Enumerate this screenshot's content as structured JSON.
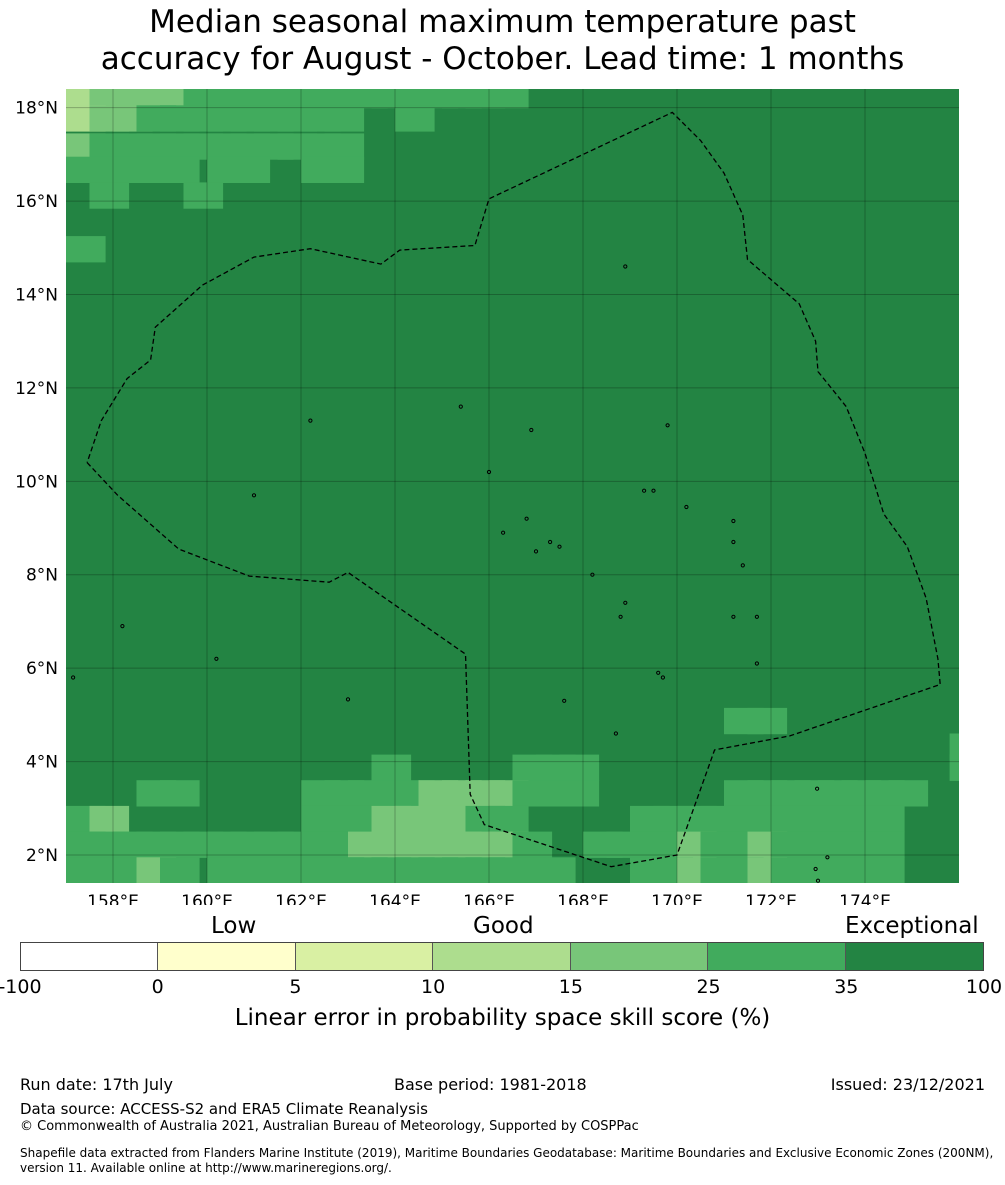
{
  "title": {
    "line1": "Median seasonal maximum temperature past",
    "line2": "accuracy for August - October. Lead time: 1 months"
  },
  "map": {
    "lon_range": [
      157,
      176
    ],
    "lat_range": [
      1.4,
      18.4
    ],
    "lon_ticks": [
      158,
      160,
      162,
      164,
      166,
      168,
      170,
      172,
      174
    ],
    "lon_tick_labels": [
      "158°E",
      "160°E",
      "162°E",
      "164°E",
      "166°E",
      "168°E",
      "170°E",
      "172°E",
      "174°E"
    ],
    "lat_ticks": [
      18,
      16,
      14,
      12,
      10,
      8,
      6,
      4,
      2
    ],
    "lat_tick_labels": [
      "18°N",
      "16°N",
      "14°N",
      "12°N",
      "10°N",
      "8°N",
      "6°N",
      "4°N",
      "2°N"
    ],
    "gridlines": true,
    "background_color": "#238443",
    "eez_boundary_style": "dashed black",
    "eez_boundary": [
      [
        157.45,
        10.4
      ],
      [
        158.1,
        9.7
      ],
      [
        159.4,
        8.55
      ],
      [
        160.9,
        7.97
      ],
      [
        162.6,
        7.84
      ],
      [
        163.0,
        8.05
      ],
      [
        165.5,
        6.3
      ],
      [
        165.6,
        3.3
      ],
      [
        165.9,
        2.65
      ],
      [
        168.6,
        1.75
      ],
      [
        170.0,
        2.0
      ],
      [
        170.8,
        4.25
      ],
      [
        172.4,
        4.55
      ],
      [
        175.6,
        5.65
      ],
      [
        175.55,
        6.2
      ],
      [
        175.3,
        7.5
      ],
      [
        174.9,
        8.6
      ],
      [
        174.4,
        9.3
      ],
      [
        174.0,
        10.6
      ],
      [
        173.6,
        11.6
      ],
      [
        173.2,
        12.1
      ],
      [
        173.0,
        12.35
      ],
      [
        172.95,
        13.0
      ],
      [
        172.6,
        13.8
      ],
      [
        171.5,
        14.75
      ],
      [
        171.4,
        15.7
      ],
      [
        171.0,
        16.6
      ],
      [
        170.5,
        17.3
      ],
      [
        169.9,
        17.9
      ],
      [
        166.0,
        16.05
      ],
      [
        165.7,
        15.05
      ],
      [
        164.1,
        14.95
      ],
      [
        163.7,
        14.65
      ],
      [
        162.2,
        14.98
      ],
      [
        161.0,
        14.8
      ],
      [
        159.9,
        14.2
      ],
      [
        158.9,
        13.3
      ],
      [
        158.8,
        12.6
      ],
      [
        158.3,
        12.2
      ],
      [
        157.75,
        11.3
      ],
      [
        157.45,
        10.4
      ]
    ],
    "islands": [
      [
        158.2,
        6.9
      ],
      [
        157.15,
        5.8
      ],
      [
        163.0,
        5.33
      ],
      [
        160.2,
        6.2
      ],
      [
        162.2,
        11.3
      ],
      [
        165.4,
        11.6
      ],
      [
        166.9,
        11.1
      ],
      [
        169.8,
        11.2
      ],
      [
        168.9,
        14.6
      ],
      [
        166.0,
        10.2
      ],
      [
        169.3,
        9.8
      ],
      [
        169.5,
        9.8
      ],
      [
        170.2,
        9.45
      ],
      [
        171.2,
        9.15
      ],
      [
        171.2,
        8.7
      ],
      [
        171.4,
        8.2
      ],
      [
        171.2,
        7.1
      ],
      [
        171.7,
        7.1
      ],
      [
        171.7,
        6.1
      ],
      [
        169.6,
        5.9
      ],
      [
        169.7,
        5.8
      ],
      [
        167.3,
        8.7
      ],
      [
        168.2,
        8.0
      ],
      [
        168.9,
        7.4
      ],
      [
        168.8,
        7.1
      ],
      [
        167.6,
        5.3
      ],
      [
        168.7,
        4.6
      ],
      [
        166.3,
        8.9
      ],
      [
        166.8,
        9.2
      ],
      [
        167.5,
        8.6
      ],
      [
        172.98,
        3.42
      ],
      [
        173.2,
        1.95
      ],
      [
        172.95,
        1.7
      ],
      [
        173.0,
        1.45
      ],
      [
        161.0,
        9.7
      ],
      [
        167.0,
        8.5
      ]
    ],
    "cells": [
      [
        157,
        18,
        "#addd8e"
      ],
      [
        157.5,
        18,
        "#78c679"
      ],
      [
        158,
        18,
        "#78c679"
      ],
      [
        158.5,
        18,
        "#78c679"
      ],
      [
        159,
        18,
        "#78c679"
      ],
      [
        159.5,
        18,
        "#41ab5d"
      ],
      [
        160,
        18,
        "#41ab5d"
      ],
      [
        160.5,
        18,
        "#41ab5d"
      ],
      [
        161,
        18,
        "#41ab5d"
      ],
      [
        161.5,
        18,
        "#41ab5d"
      ],
      [
        162,
        18,
        "#41ab5d"
      ],
      [
        162.5,
        18,
        "#41ab5d"
      ],
      [
        163,
        18,
        "#41ab5d"
      ],
      [
        163.5,
        18,
        "#41ab5d"
      ],
      [
        164,
        18,
        "#41ab5d"
      ],
      [
        164.5,
        18,
        "#41ab5d"
      ],
      [
        165,
        18,
        "#41ab5d"
      ],
      [
        165.5,
        18,
        "#41ab5d"
      ],
      [
        166,
        18,
        "#41ab5d"
      ],
      [
        157,
        17.5,
        "#addd8e"
      ],
      [
        157.5,
        17.5,
        "#78c679"
      ],
      [
        158,
        17.5,
        "#78c679"
      ],
      [
        158.5,
        17.5,
        "#41ab5d"
      ],
      [
        159,
        17.5,
        "#41ab5d"
      ],
      [
        159.5,
        17.5,
        "#41ab5d"
      ],
      [
        160,
        17.5,
        "#41ab5d"
      ],
      [
        160.5,
        17.5,
        "#41ab5d"
      ],
      [
        161,
        17.5,
        "#41ab5d"
      ],
      [
        161.5,
        17.5,
        "#41ab5d"
      ],
      [
        162,
        17.5,
        "#41ab5d"
      ],
      [
        162.5,
        17.5,
        "#41ab5d"
      ],
      [
        164,
        17.5,
        "#41ab5d"
      ],
      [
        157,
        16.9,
        "#78c679"
      ],
      [
        157.5,
        16.9,
        "#41ab5d"
      ],
      [
        158,
        16.9,
        "#41ab5d"
      ],
      [
        158.5,
        16.9,
        "#41ab5d"
      ],
      [
        159,
        16.9,
        "#41ab5d"
      ],
      [
        159.5,
        16.9,
        "#41ab5d"
      ],
      [
        160,
        16.9,
        "#41ab5d"
      ],
      [
        160.5,
        16.9,
        "#41ab5d"
      ],
      [
        161,
        16.9,
        "#41ab5d"
      ],
      [
        161.5,
        16.9,
        "#41ab5d"
      ],
      [
        162,
        16.9,
        "#41ab5d"
      ],
      [
        162.5,
        16.9,
        "#41ab5d"
      ],
      [
        157,
        16.4,
        "#41ab5d"
      ],
      [
        157.5,
        16.4,
        "#41ab5d"
      ],
      [
        158,
        16.4,
        "#41ab5d"
      ],
      [
        158.5,
        16.4,
        "#41ab5d"
      ],
      [
        159,
        16.4,
        "#41ab5d"
      ],
      [
        160,
        16.4,
        "#41ab5d"
      ],
      [
        160.5,
        16.4,
        "#41ab5d"
      ],
      [
        162,
        16.4,
        "#41ab5d"
      ],
      [
        162.5,
        16.4,
        "#41ab5d"
      ],
      [
        157.5,
        15.85,
        "#41ab5d"
      ],
      [
        159.5,
        15.85,
        "#41ab5d"
      ],
      [
        157,
        14.7,
        "#41ab5d"
      ],
      [
        163.5,
        3.6,
        "#41ab5d"
      ],
      [
        166.5,
        3.6,
        "#41ab5d"
      ],
      [
        167,
        3.6,
        "#41ab5d"
      ],
      [
        167.5,
        3.6,
        "#41ab5d"
      ],
      [
        175.8,
        3.6,
        "#41ab5d"
      ],
      [
        175.8,
        4.05,
        "#41ab5d"
      ],
      [
        171,
        4.6,
        "#41ab5d"
      ],
      [
        171.5,
        4.6,
        "#41ab5d"
      ],
      [
        158.5,
        3.05,
        "#41ab5d"
      ],
      [
        159,
        3.05,
        "#41ab5d"
      ],
      [
        162,
        3.05,
        "#41ab5d"
      ],
      [
        162.5,
        3.05,
        "#41ab5d"
      ],
      [
        163,
        3.05,
        "#41ab5d"
      ],
      [
        163.5,
        3.05,
        "#41ab5d"
      ],
      [
        164,
        3.05,
        "#41ab5d"
      ],
      [
        164.5,
        3.05,
        "#78c679"
      ],
      [
        165,
        3.05,
        "#78c679"
      ],
      [
        165.5,
        3.05,
        "#78c679"
      ],
      [
        166,
        3.05,
        "#78c679"
      ],
      [
        166.5,
        3.05,
        "#41ab5d"
      ],
      [
        167,
        3.05,
        "#41ab5d"
      ],
      [
        167.5,
        3.05,
        "#41ab5d"
      ],
      [
        171,
        3.05,
        "#41ab5d"
      ],
      [
        171.5,
        3.05,
        "#41ab5d"
      ],
      [
        172,
        3.05,
        "#41ab5d"
      ],
      [
        172.5,
        3.05,
        "#41ab5d"
      ],
      [
        173,
        3.05,
        "#41ab5d"
      ],
      [
        173.5,
        3.05,
        "#41ab5d"
      ],
      [
        174,
        3.05,
        "#41ab5d"
      ],
      [
        174.5,
        3.05,
        "#41ab5d"
      ],
      [
        157,
        2.5,
        "#41ab5d"
      ],
      [
        157.5,
        2.5,
        "#78c679"
      ],
      [
        162,
        2.5,
        "#41ab5d"
      ],
      [
        162.5,
        2.5,
        "#41ab5d"
      ],
      [
        163,
        2.5,
        "#41ab5d"
      ],
      [
        163.5,
        2.5,
        "#78c679"
      ],
      [
        164,
        2.5,
        "#78c679"
      ],
      [
        164.5,
        2.5,
        "#78c679"
      ],
      [
        165,
        2.5,
        "#78c679"
      ],
      [
        165.5,
        2.5,
        "#41ab5d"
      ],
      [
        166,
        2.5,
        "#41ab5d"
      ],
      [
        169,
        2.5,
        "#41ab5d"
      ],
      [
        169.5,
        2.5,
        "#41ab5d"
      ],
      [
        170,
        2.5,
        "#41ab5d"
      ],
      [
        170.5,
        2.5,
        "#41ab5d"
      ],
      [
        171,
        2.5,
        "#41ab5d"
      ],
      [
        171.5,
        2.5,
        "#41ab5d"
      ],
      [
        172,
        2.5,
        "#41ab5d"
      ],
      [
        172.5,
        2.5,
        "#41ab5d"
      ],
      [
        173,
        2.5,
        "#41ab5d"
      ],
      [
        173.5,
        2.5,
        "#41ab5d"
      ],
      [
        174,
        2.5,
        "#41ab5d"
      ],
      [
        157,
        1.95,
        "#41ab5d"
      ],
      [
        157.5,
        1.95,
        "#41ab5d"
      ],
      [
        158,
        1.95,
        "#41ab5d"
      ],
      [
        158.5,
        1.95,
        "#41ab5d"
      ],
      [
        159,
        1.95,
        "#41ab5d"
      ],
      [
        159.5,
        1.95,
        "#41ab5d"
      ],
      [
        160,
        1.95,
        "#41ab5d"
      ],
      [
        160.5,
        1.95,
        "#41ab5d"
      ],
      [
        161,
        1.95,
        "#41ab5d"
      ],
      [
        161.5,
        1.95,
        "#41ab5d"
      ],
      [
        162,
        1.95,
        "#41ab5d"
      ],
      [
        162.5,
        1.95,
        "#41ab5d"
      ],
      [
        163,
        1.95,
        "#78c679"
      ],
      [
        163.5,
        1.95,
        "#78c679"
      ],
      [
        164,
        1.95,
        "#78c679"
      ],
      [
        164.5,
        1.95,
        "#78c679"
      ],
      [
        165,
        1.95,
        "#78c679"
      ],
      [
        165.5,
        1.95,
        "#78c679"
      ],
      [
        166,
        1.95,
        "#78c679"
      ],
      [
        166.5,
        1.95,
        "#41ab5d"
      ],
      [
        168,
        1.95,
        "#41ab5d"
      ],
      [
        168.5,
        1.95,
        "#41ab5d"
      ],
      [
        169,
        1.95,
        "#41ab5d"
      ],
      [
        169.5,
        1.95,
        "#41ab5d"
      ],
      [
        170,
        1.95,
        "#78c679"
      ],
      [
        170.5,
        1.95,
        "#41ab5d"
      ],
      [
        171,
        1.95,
        "#41ab5d"
      ],
      [
        171.5,
        1.95,
        "#78c679"
      ],
      [
        172,
        1.95,
        "#41ab5d"
      ],
      [
        172.5,
        1.95,
        "#41ab5d"
      ],
      [
        173,
        1.95,
        "#41ab5d"
      ],
      [
        173.5,
        1.95,
        "#41ab5d"
      ],
      [
        174,
        1.95,
        "#41ab5d"
      ],
      [
        157,
        1.4,
        "#41ab5d"
      ],
      [
        157.5,
        1.4,
        "#41ab5d"
      ],
      [
        158,
        1.4,
        "#41ab5d"
      ],
      [
        158.5,
        1.4,
        "#78c679"
      ],
      [
        159,
        1.4,
        "#41ab5d"
      ],
      [
        160,
        1.4,
        "#41ab5d"
      ],
      [
        160.5,
        1.4,
        "#41ab5d"
      ],
      [
        161,
        1.4,
        "#41ab5d"
      ],
      [
        161.5,
        1.4,
        "#41ab5d"
      ],
      [
        162,
        1.4,
        "#41ab5d"
      ],
      [
        162.5,
        1.4,
        "#41ab5d"
      ],
      [
        163,
        1.4,
        "#41ab5d"
      ],
      [
        163.5,
        1.4,
        "#41ab5d"
      ],
      [
        164,
        1.4,
        "#41ab5d"
      ],
      [
        164.5,
        1.4,
        "#41ab5d"
      ],
      [
        165,
        1.4,
        "#41ab5d"
      ],
      [
        165.5,
        1.4,
        "#41ab5d"
      ],
      [
        166,
        1.4,
        "#41ab5d"
      ],
      [
        166.5,
        1.4,
        "#41ab5d"
      ],
      [
        167,
        1.4,
        "#41ab5d"
      ],
      [
        169,
        1.4,
        "#41ab5d"
      ],
      [
        169.5,
        1.4,
        "#41ab5d"
      ],
      [
        170,
        1.4,
        "#78c679"
      ],
      [
        170.5,
        1.4,
        "#41ab5d"
      ],
      [
        171,
        1.4,
        "#41ab5d"
      ],
      [
        171.5,
        1.4,
        "#78c679"
      ],
      [
        172,
        1.4,
        "#41ab5d"
      ],
      [
        172.5,
        1.4,
        "#41ab5d"
      ],
      [
        173,
        1.4,
        "#41ab5d"
      ],
      [
        173.5,
        1.4,
        "#41ab5d"
      ],
      [
        174,
        1.4,
        "#41ab5d"
      ]
    ],
    "cell_size": [
      0.83,
      0.55
    ]
  },
  "colorbar": {
    "categories": {
      "low": "Low",
      "good": "Good",
      "exceptional": "Exceptional"
    },
    "segments": [
      {
        "range": "-100 to 0",
        "color": "#ffffff"
      },
      {
        "range": "0 to 5",
        "color": "#ffffcc"
      },
      {
        "range": "5 to 10",
        "color": "#d9f0a3"
      },
      {
        "range": "10 to 15",
        "color": "#addd8e"
      },
      {
        "range": "15 to 25",
        "color": "#78c679"
      },
      {
        "range": "25 to 35",
        "color": "#41ab5d"
      },
      {
        "range": "35 to 100",
        "color": "#238443"
      }
    ],
    "ticks": [
      "-100",
      "0",
      "5",
      "10",
      "15",
      "25",
      "35",
      "100"
    ],
    "label": "Linear error in probability space skill score (%)"
  },
  "footer": {
    "run_date": "Run date: 17th July",
    "base_period": "Base period: 1981-2018",
    "issued": "Issued: 23/12/2021",
    "data_source": "Data source: ACCESS-S2 and ERA5 Climate Reanalysis",
    "copyright": "© Commonwealth of Australia 2021, Australian Bureau of Meteorology, Supported by COSPPac",
    "shapefile": "Shapefile data extracted from Flanders Marine Institute (2019), Maritime Boundaries Geodatabase: Maritime Boundaries and Exclusive Economic Zones (200NM), version 11. Available online at http://www.marineregions.org/."
  }
}
